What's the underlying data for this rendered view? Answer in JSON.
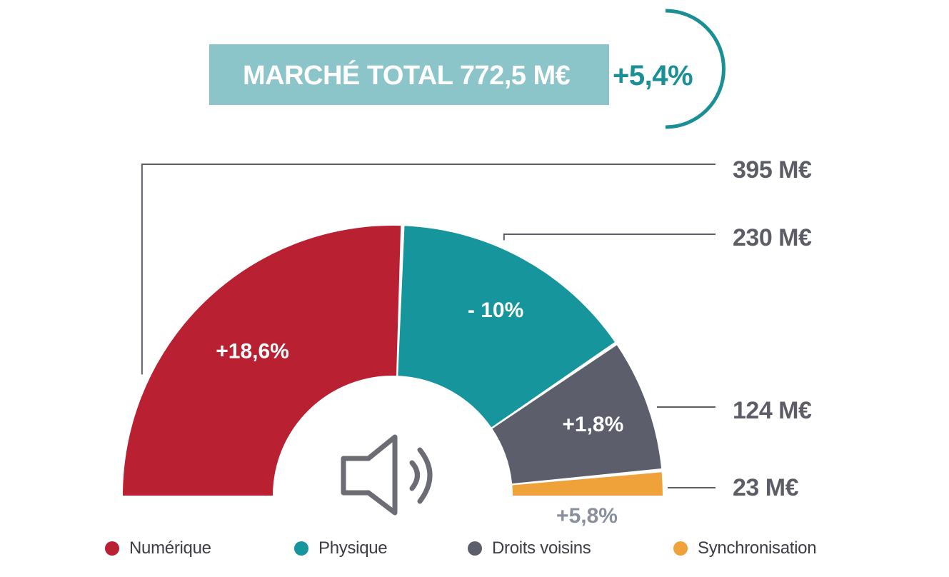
{
  "header": {
    "title": "MARCHÉ TOTAL 772,5 M€",
    "growth": "+5,4%"
  },
  "colors": {
    "numerique": "#b92032",
    "physique": "#16959c",
    "droits_voisins": "#5c5e6b",
    "synchronisation": "#f0a23a",
    "banner": "#8cc5c9",
    "accent": "#1a8f96"
  },
  "icon": "speaker-icon",
  "chart_data": {
    "type": "pie",
    "shape": "half-donut",
    "title": "",
    "categories": [
      "Numérique",
      "Physique",
      "Droits voisins",
      "Synchronisation"
    ],
    "values": [
      395,
      230,
      124,
      23
    ],
    "unit": "M€",
    "value_labels": [
      "395 M€",
      "230 M€",
      "124 M€",
      "23 M€"
    ],
    "growth_labels": [
      "+18,6%",
      "- 10%",
      "+1,8%",
      "+5,8%"
    ],
    "legend": [
      "Numérique",
      "Physique",
      "Droits voisins",
      "Synchronisation"
    ],
    "legend_position": "bottom"
  }
}
